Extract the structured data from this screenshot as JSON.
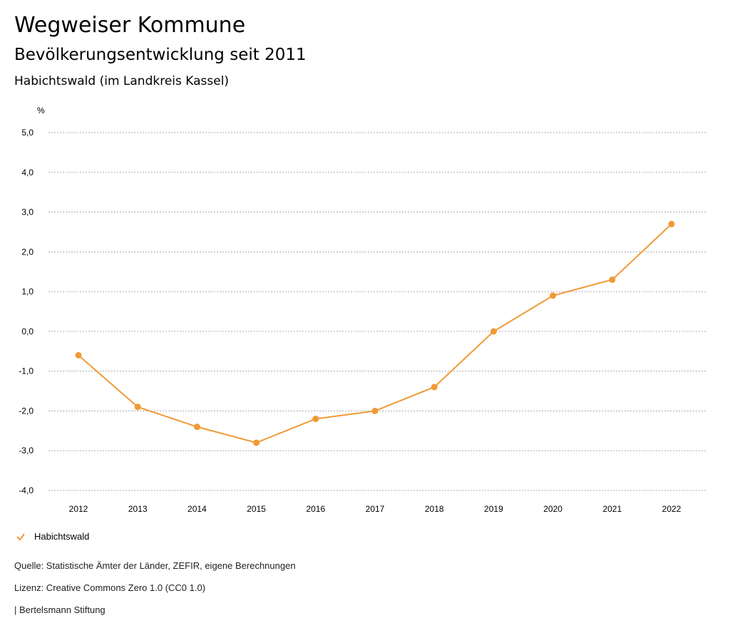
{
  "header": {
    "title": "Wegweiser Kommune",
    "subtitle": "Bevölkerungsentwicklung seit 2011",
    "region": "Habichtswald (im Landkreis Kassel)"
  },
  "chart_data": {
    "type": "line",
    "title": "Bevölkerungsentwicklung seit 2011",
    "ylabel": "%",
    "xlabel": "",
    "ylim": [
      -4,
      5
    ],
    "yticks": [
      5,
      4,
      3,
      2,
      1,
      0,
      -1,
      -2,
      -3,
      -4
    ],
    "ytick_labels": [
      "5,0",
      "4,0",
      "3,0",
      "2,0",
      "1,0",
      "0,0",
      "-1,0",
      "-2,0",
      "-3,0",
      "-4,0"
    ],
    "categories": [
      "2012",
      "2013",
      "2014",
      "2015",
      "2016",
      "2017",
      "2018",
      "2019",
      "2020",
      "2021",
      "2022"
    ],
    "series": [
      {
        "name": "Habichtswald",
        "color": "#f09a36",
        "values": [
          -0.6,
          -1.9,
          -2.4,
          -2.8,
          -2.2,
          -2.0,
          -1.4,
          0.0,
          0.9,
          1.3,
          2.7
        ]
      }
    ],
    "grid": true,
    "legend": "bottom-left"
  },
  "footer": {
    "source": "Quelle: Statistische Ämter der Länder, ZEFIR, eigene Berechnungen",
    "license": "Lizenz: Creative Commons Zero 1.0 (CC0 1.0)",
    "publisher": "| Bertelsmann Stiftung"
  }
}
